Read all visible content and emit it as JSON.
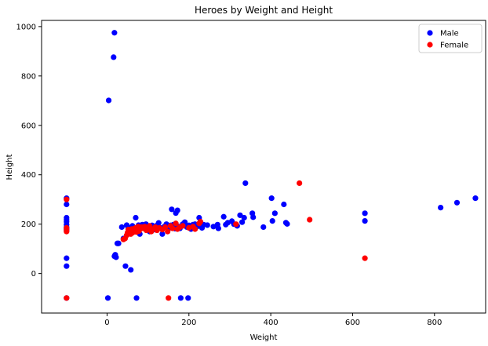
{
  "chart_data": {
    "type": "scatter",
    "title": "Heroes by Weight and Height",
    "xlabel": "Weight",
    "ylabel": "Height",
    "xlim": [
      -160,
      925
    ],
    "ylim": [
      -160,
      1025
    ],
    "xticks": [
      0,
      200,
      400,
      600,
      800
    ],
    "yticks": [
      0,
      200,
      400,
      600,
      800,
      1000
    ],
    "grid": false,
    "legend": "top-right",
    "series": [
      {
        "name": "Male",
        "color": "#0000ff",
        "points": [
          [
            -99,
            305
          ],
          [
            -99,
            280
          ],
          [
            -99,
            226
          ],
          [
            -99,
            218
          ],
          [
            -99,
            210
          ],
          [
            -99,
            198
          ],
          [
            -99,
            188
          ],
          [
            -99,
            182
          ],
          [
            -99,
            175
          ],
          [
            -99,
            62
          ],
          [
            -99,
            30
          ],
          [
            -99,
            -99
          ],
          [
            2,
            -99
          ],
          [
            4,
            701
          ],
          [
            16,
            876
          ],
          [
            18,
            975
          ],
          [
            18,
            70
          ],
          [
            20,
            76
          ],
          [
            22,
            66
          ],
          [
            25,
            122
          ],
          [
            28,
            122
          ],
          [
            36,
            188
          ],
          [
            40,
            142
          ],
          [
            45,
            30
          ],
          [
            48,
            196
          ],
          [
            52,
            183
          ],
          [
            55,
            172
          ],
          [
            58,
            15
          ],
          [
            60,
            188
          ],
          [
            62,
            193
          ],
          [
            66,
            170
          ],
          [
            70,
            226
          ],
          [
            72,
            -99
          ],
          [
            74,
            180
          ],
          [
            77,
            196
          ],
          [
            80,
            160
          ],
          [
            83,
            188
          ],
          [
            86,
            198
          ],
          [
            90,
            193
          ],
          [
            95,
            200
          ],
          [
            100,
            188
          ],
          [
            104,
            170
          ],
          [
            110,
            195
          ],
          [
            115,
            178
          ],
          [
            120,
            193
          ],
          [
            126,
            205
          ],
          [
            130,
            185
          ],
          [
            135,
            160
          ],
          [
            140,
            190
          ],
          [
            145,
            200
          ],
          [
            150,
            183
          ],
          [
            155,
            195
          ],
          [
            158,
            260
          ],
          [
            162,
            198
          ],
          [
            166,
            182
          ],
          [
            168,
            245
          ],
          [
            172,
            256
          ],
          [
            175,
            190
          ],
          [
            178,
            183
          ],
          [
            180,
            -99
          ],
          [
            185,
            200
          ],
          [
            190,
            208
          ],
          [
            195,
            188
          ],
          [
            198,
            -99
          ],
          [
            200,
            195
          ],
          [
            205,
            180
          ],
          [
            210,
            198
          ],
          [
            215,
            200
          ],
          [
            220,
            190
          ],
          [
            225,
            226
          ],
          [
            228,
            210
          ],
          [
            232,
            185
          ],
          [
            236,
            198
          ],
          [
            245,
            196
          ],
          [
            260,
            190
          ],
          [
            270,
            198
          ],
          [
            272,
            183
          ],
          [
            285,
            230
          ],
          [
            290,
            198
          ],
          [
            295,
            206
          ],
          [
            305,
            212
          ],
          [
            310,
            200
          ],
          [
            318,
            193
          ],
          [
            325,
            236
          ],
          [
            330,
            208
          ],
          [
            335,
            226
          ],
          [
            338,
            366
          ],
          [
            355,
            244
          ],
          [
            357,
            228
          ],
          [
            382,
            188
          ],
          [
            402,
            305
          ],
          [
            404,
            213
          ],
          [
            410,
            244
          ],
          [
            432,
            280
          ],
          [
            437,
            206
          ],
          [
            440,
            201
          ],
          [
            630,
            244
          ],
          [
            630,
            213
          ],
          [
            815,
            267
          ],
          [
            855,
            287
          ],
          [
            900,
            305
          ]
        ]
      },
      {
        "name": "Female",
        "color": "#ff0000",
        "points": [
          [
            -99,
            300
          ],
          [
            -99,
            185
          ],
          [
            -99,
            178
          ],
          [
            -99,
            170
          ],
          [
            -99,
            -99
          ],
          [
            40,
            138
          ],
          [
            44,
            142
          ],
          [
            48,
            155
          ],
          [
            50,
            165
          ],
          [
            52,
            178
          ],
          [
            54,
            168
          ],
          [
            56,
            172
          ],
          [
            58,
            160
          ],
          [
            60,
            180
          ],
          [
            62,
            165
          ],
          [
            64,
            175
          ],
          [
            66,
            182
          ],
          [
            68,
            170
          ],
          [
            70,
            185
          ],
          [
            72,
            168
          ],
          [
            74,
            178
          ],
          [
            76,
            190
          ],
          [
            78,
            172
          ],
          [
            80,
            180
          ],
          [
            84,
            188
          ],
          [
            88,
            183
          ],
          [
            92,
            190
          ],
          [
            96,
            175
          ],
          [
            100,
            185
          ],
          [
            104,
            193
          ],
          [
            108,
            170
          ],
          [
            112,
            180
          ],
          [
            118,
            188
          ],
          [
            122,
            175
          ],
          [
            128,
            185
          ],
          [
            135,
            178
          ],
          [
            142,
            188
          ],
          [
            148,
            170
          ],
          [
            150,
            -99
          ],
          [
            155,
            193
          ],
          [
            160,
            183
          ],
          [
            168,
            203
          ],
          [
            172,
            180
          ],
          [
            178,
            188
          ],
          [
            185,
            193
          ],
          [
            200,
            185
          ],
          [
            210,
            190
          ],
          [
            215,
            180
          ],
          [
            225,
            203
          ],
          [
            228,
            210
          ],
          [
            315,
            200
          ],
          [
            470,
            366
          ],
          [
            495,
            218
          ],
          [
            630,
            62
          ]
        ]
      }
    ]
  }
}
